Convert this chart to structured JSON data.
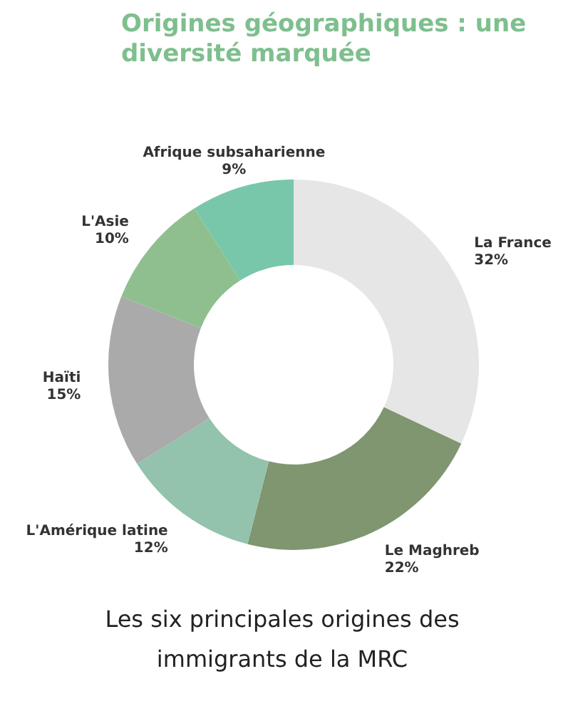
{
  "chart_data": {
    "type": "donut",
    "title": "Origines géographiques : une diversité marquée",
    "categories": [
      "La France",
      "Le Maghreb",
      "L'Amérique latine",
      "Haïti",
      "L'Asie",
      "Afrique subsaharienne"
    ],
    "values": [
      32,
      22,
      12,
      15,
      10,
      9
    ],
    "value_labels": [
      "32%",
      "22%",
      "12%",
      "15%",
      "10%",
      "9%"
    ],
    "colors": [
      "#e6e6e6",
      "#7f9670",
      "#93c2ad",
      "#aaaaaa",
      "#8fbf8e",
      "#78c7aa"
    ],
    "annotations": [
      "Les six principales origines des immigrants de la MRC"
    ]
  }
}
